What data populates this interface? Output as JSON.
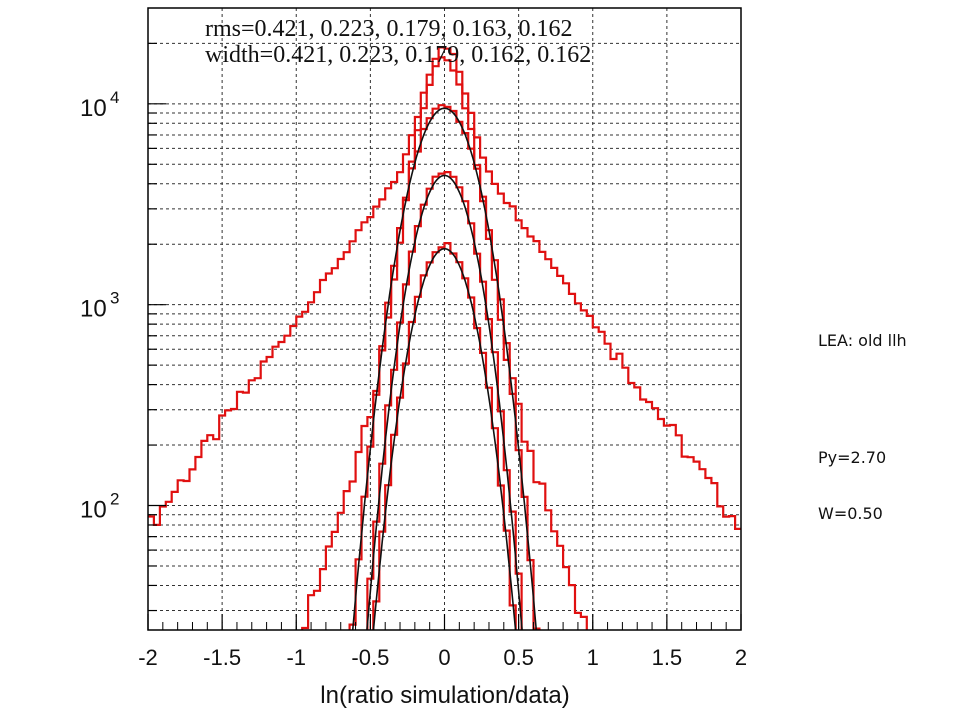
{
  "chart_data": {
    "type": "line",
    "title_lines": [
      "rms=0.421, 0.223, 0.179, 0.163, 0.162",
      "width=0.421, 0.223, 0.179, 0.162, 0.162"
    ],
    "xlabel": "ln(ratio simulation/data)",
    "ylabel": "",
    "xlim": [
      -2,
      2
    ],
    "ylim": [
      24,
      30000
    ],
    "yscale": "log",
    "x_ticks": [
      {
        "value": -2,
        "label": "-2"
      },
      {
        "value": -1.5,
        "label": "-1.5"
      },
      {
        "value": -1,
        "label": "-1"
      },
      {
        "value": -0.5,
        "label": "-0.5"
      },
      {
        "value": 0,
        "label": "0"
      },
      {
        "value": 0.5,
        "label": "0.5"
      },
      {
        "value": 1,
        "label": "1"
      },
      {
        "value": 1.5,
        "label": "1.5"
      },
      {
        "value": 2,
        "label": "2"
      }
    ],
    "y_ticks": [
      {
        "value": 100,
        "base": "10",
        "exp": "2"
      },
      {
        "value": 1000,
        "base": "10",
        "exp": "3"
      },
      {
        "value": 10000,
        "base": "10",
        "exp": "4"
      }
    ],
    "grid": true,
    "series": [
      {
        "kind": "histogram",
        "color": "#e01010",
        "peak": 20000,
        "rms": 0.421,
        "shape": "exponential-tail"
      },
      {
        "kind": "histogram",
        "color": "#e01010",
        "peak": 17000,
        "rms": 0.223,
        "shape": "gaussian-core"
      },
      {
        "kind": "histogram",
        "color": "#e01010",
        "peak": 9800,
        "rms": 0.179,
        "shape": "gaussian"
      },
      {
        "kind": "histogram",
        "color": "#e01010",
        "peak": 4600,
        "rms": 0.163,
        "shape": "gaussian"
      },
      {
        "kind": "histogram",
        "color": "#e01010",
        "peak": 2000,
        "rms": 0.162,
        "shape": "gaussian"
      },
      {
        "kind": "gaussian-fit",
        "color": "#111111",
        "peak": 9500,
        "sigma": 0.179
      },
      {
        "kind": "gaussian-fit",
        "color": "#111111",
        "peak": 4400,
        "sigma": 0.162
      },
      {
        "kind": "gaussian-fit",
        "color": "#111111",
        "peak": 1900,
        "sigma": 0.162
      }
    ]
  },
  "side_labels": {
    "lea": "LEA: old llh",
    "py": "Py=2.70",
    "w": "W=0.50"
  }
}
